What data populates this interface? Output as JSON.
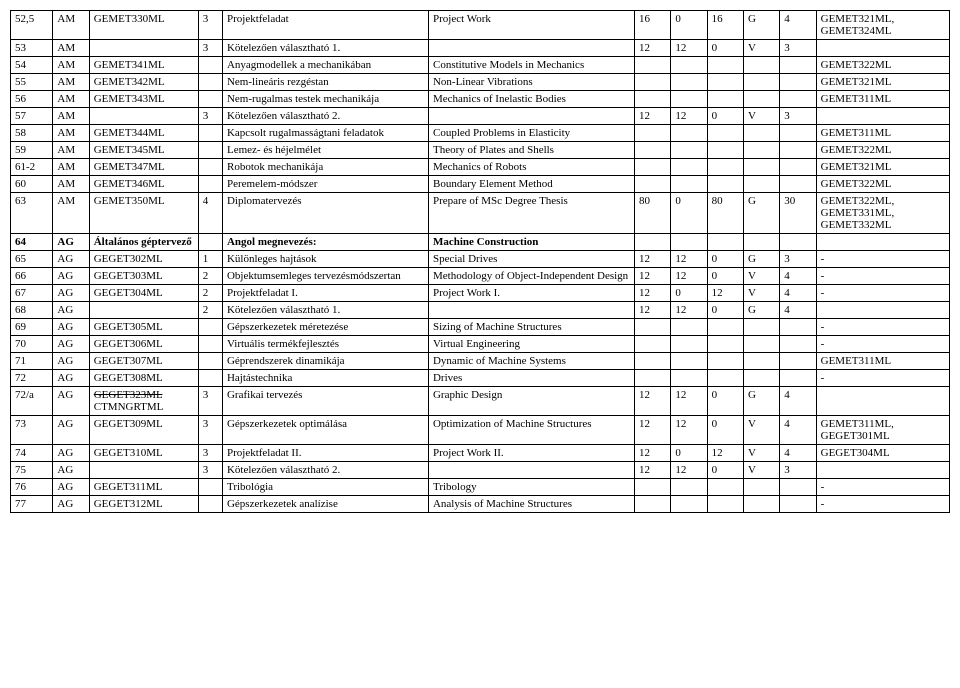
{
  "table": {
    "col_classes": [
      "c0",
      "c1",
      "c2",
      "c3",
      "c4",
      "c5",
      "c6",
      "c7",
      "c8",
      "c9",
      "c10",
      "c11"
    ],
    "rows": [
      [
        "52,5",
        "AM",
        "GEMET330ML",
        "3",
        "Projektfeladat",
        "Project Work",
        "16",
        "0",
        "16",
        "G",
        "4",
        "GEMET321ML, GEMET324ML"
      ],
      [
        "53",
        "AM",
        "",
        "3",
        "Kötelezően választható 1.",
        "",
        "12",
        "12",
        "0",
        "V",
        "3",
        ""
      ],
      [
        "54",
        "AM",
        "GEMET341ML",
        "",
        "Anyagmodellek a mechanikában",
        "Constitutive Models in Mechanics",
        "",
        "",
        "",
        "",
        "",
        "GEMET322ML"
      ],
      [
        "55",
        "AM",
        "GEMET342ML",
        "",
        "Nem-lineáris rezgéstan",
        "Non-Linear Vibrations",
        "",
        "",
        "",
        "",
        "",
        "GEMET321ML"
      ],
      [
        "56",
        "AM",
        "GEMET343ML",
        "",
        "Nem-rugalmas testek mechanikája",
        "Mechanics of Inelastic Bodies",
        "",
        "",
        "",
        "",
        "",
        "GEMET311ML"
      ],
      [
        "57",
        "AM",
        "",
        "3",
        "Kötelezően választható 2.",
        "",
        "12",
        "12",
        "0",
        "V",
        "3",
        ""
      ],
      [
        "58",
        "AM",
        "GEMET344ML",
        "",
        "Kapcsolt rugalmasságtani feladatok",
        "Coupled Problems in Elasticity",
        "",
        "",
        "",
        "",
        "",
        "GEMET311ML"
      ],
      [
        "59",
        "AM",
        "GEMET345ML",
        "",
        "Lemez- és héjelmélet",
        "Theory of Plates and Shells",
        "",
        "",
        "",
        "",
        "",
        "GEMET322ML"
      ],
      [
        "61-2",
        "AM",
        "GEMET347ML",
        "",
        "Robotok mechanikája",
        "Mechanics of Robots",
        "",
        "",
        "",
        "",
        "",
        "GEMET321ML"
      ],
      [
        "60",
        "AM",
        "GEMET346ML",
        "",
        "Peremelem-módszer",
        "Boundary Element Method",
        "",
        "",
        "",
        "",
        "",
        "GEMET322ML"
      ],
      [
        "63",
        "AM",
        "GEMET350ML",
        "4",
        "Diplomatervezés",
        "Prepare of MSc Degree Thesis",
        "80",
        "0",
        "80",
        "G",
        "30",
        "GEMET322ML, GEMET331ML, GEMET332ML"
      ],
      [
        "64",
        "AG",
        "Általános géptervező",
        "",
        "Angol megnevezés:",
        "Machine Construction",
        "",
        "",
        "",
        "",
        "",
        ""
      ],
      [
        "65",
        "AG",
        "GEGET302ML",
        "1",
        "Különleges hajtások",
        "Special Drives",
        "12",
        "12",
        "0",
        "G",
        "3",
        "-"
      ],
      [
        "66",
        "AG",
        "GEGET303ML",
        "2",
        "Objektumsemleges tervezésmódszertan",
        "Methodology of Object-Independent Design",
        "12",
        "12",
        "0",
        "V",
        "4",
        "-"
      ],
      [
        "67",
        "AG",
        "GEGET304ML",
        "2",
        "Projektfeladat I.",
        "Project Work I.",
        "12",
        "0",
        "12",
        "V",
        "4",
        "-"
      ],
      [
        "68",
        "AG",
        "",
        "2",
        "Kötelezően választható 1.",
        "",
        "12",
        "12",
        "0",
        "G",
        "4",
        ""
      ],
      [
        "69",
        "AG",
        "GEGET305ML",
        "",
        "Gépszerkezetek méretezése",
        "Sizing of Machine Structures",
        "",
        "",
        "",
        "",
        "",
        "-"
      ],
      [
        "70",
        "AG",
        "GEGET306ML",
        "",
        "Virtuális termékfejlesztés",
        "Virtual Engineering",
        "",
        "",
        "",
        "",
        "",
        "-"
      ],
      [
        "71",
        "AG",
        "GEGET307ML",
        "",
        "Géprendszerek dinamikája",
        "Dynamic of Machine Systems",
        "",
        "",
        "",
        "",
        "",
        "GEMET311ML"
      ],
      [
        "72",
        "AG",
        "GEGET308ML",
        "",
        "Hajtástechnika",
        "Drives",
        "",
        "",
        "",
        "",
        "",
        "-"
      ],
      [
        "72/a",
        "AG",
        "GEGET323ML CTMNGRTML",
        "3",
        "Grafikai tervezés",
        "Graphic Design",
        "12",
        "12",
        "0",
        "G",
        "4",
        ""
      ],
      [
        "73",
        "AG",
        "GEGET309ML",
        "3",
        "Gépszerkezetek optimálása",
        "Optimization of Machine Structures",
        "12",
        "12",
        "0",
        "V",
        "4",
        "GEMET311ML, GEGET301ML"
      ],
      [
        "74",
        "AG",
        "GEGET310ML",
        "3",
        "Projektfeladat II.",
        "Project Work II.",
        "12",
        "0",
        "12",
        "V",
        "4",
        "GEGET304ML"
      ],
      [
        "75",
        "AG",
        "",
        "3",
        "Kötelezően választható 2.",
        "",
        "12",
        "12",
        "0",
        "V",
        "3",
        ""
      ],
      [
        "76",
        "AG",
        "GEGET311ML",
        "",
        "Tribológia",
        "Tribology",
        "",
        "",
        "",
        "",
        "",
        "-"
      ],
      [
        "77",
        "AG",
        "GEGET312ML",
        "",
        "Gépszerkezetek analízise",
        "Analysis of Machine Structures",
        "",
        "",
        "",
        "",
        "",
        "-"
      ]
    ],
    "bold_rows": [
      11
    ],
    "strike_cells": [
      [
        20,
        2,
        "GEGET323ML"
      ]
    ]
  }
}
